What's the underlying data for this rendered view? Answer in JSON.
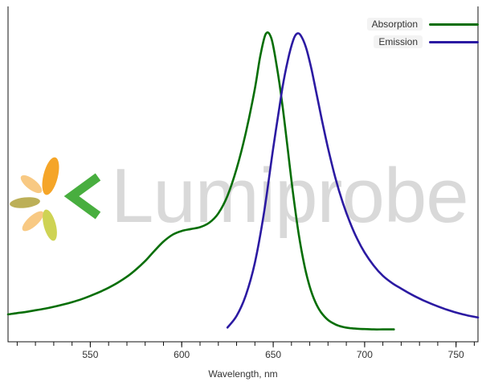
{
  "watermark": {
    "text": "Lumiprobe",
    "logo_colors": {
      "orange": "#f5a11d",
      "peach": "#f8c77d",
      "olive": "#b9ab4f",
      "lime": "#ccd14b",
      "green": "#3faa35"
    }
  },
  "chart_data": {
    "type": "line",
    "title": "",
    "xlabel": "Wavelength, nm",
    "ylabel": "",
    "xlim": [
      505,
      762
    ],
    "ylim": [
      0,
      1.05
    ],
    "grid": false,
    "legend_position": "top-right",
    "x_ticks": [
      550,
      600,
      650,
      700,
      750
    ],
    "x_minor_tick_step": 10,
    "axis_color": "#111111",
    "series": [
      {
        "name": "Absorption",
        "color": "#066e06",
        "peak_nm": 646,
        "x": [
          505,
          510,
          515,
          520,
          525,
          530,
          535,
          540,
          545,
          550,
          555,
          560,
          565,
          570,
          575,
          580,
          585,
          590,
          595,
          600,
          605,
          610,
          615,
          620,
          625,
          630,
          635,
          640,
          643,
          646,
          649,
          652,
          655,
          658,
          661,
          664,
          667,
          670,
          673,
          676,
          680,
          684,
          688,
          692,
          696,
          700,
          705,
          710,
          716
        ],
        "y": [
          0.09,
          0.094,
          0.098,
          0.103,
          0.108,
          0.114,
          0.121,
          0.129,
          0.138,
          0.149,
          0.161,
          0.175,
          0.191,
          0.21,
          0.233,
          0.26,
          0.292,
          0.322,
          0.344,
          0.356,
          0.362,
          0.368,
          0.382,
          0.412,
          0.468,
          0.554,
          0.668,
          0.81,
          0.915,
          0.985,
          0.97,
          0.88,
          0.76,
          0.615,
          0.47,
          0.345,
          0.248,
          0.178,
          0.13,
          0.098,
          0.072,
          0.058,
          0.05,
          0.046,
          0.044,
          0.043,
          0.042,
          0.042,
          0.042
        ]
      },
      {
        "name": "Emission",
        "color": "#2b1aa2",
        "peak_nm": 662,
        "x": [
          625,
          630,
          635,
          640,
          645,
          650,
          655,
          658,
          661,
          663,
          665,
          668,
          671,
          674,
          677,
          680,
          684,
          688,
          692,
          696,
          700,
          705,
          710,
          715,
          720,
          726,
          732,
          738,
          744,
          750,
          756,
          762
        ],
        "y": [
          0.048,
          0.085,
          0.15,
          0.255,
          0.415,
          0.62,
          0.81,
          0.9,
          0.965,
          0.985,
          0.98,
          0.94,
          0.87,
          0.785,
          0.7,
          0.62,
          0.525,
          0.447,
          0.383,
          0.33,
          0.287,
          0.245,
          0.213,
          0.19,
          0.172,
          0.152,
          0.135,
          0.12,
          0.107,
          0.096,
          0.087,
          0.08
        ]
      }
    ]
  }
}
